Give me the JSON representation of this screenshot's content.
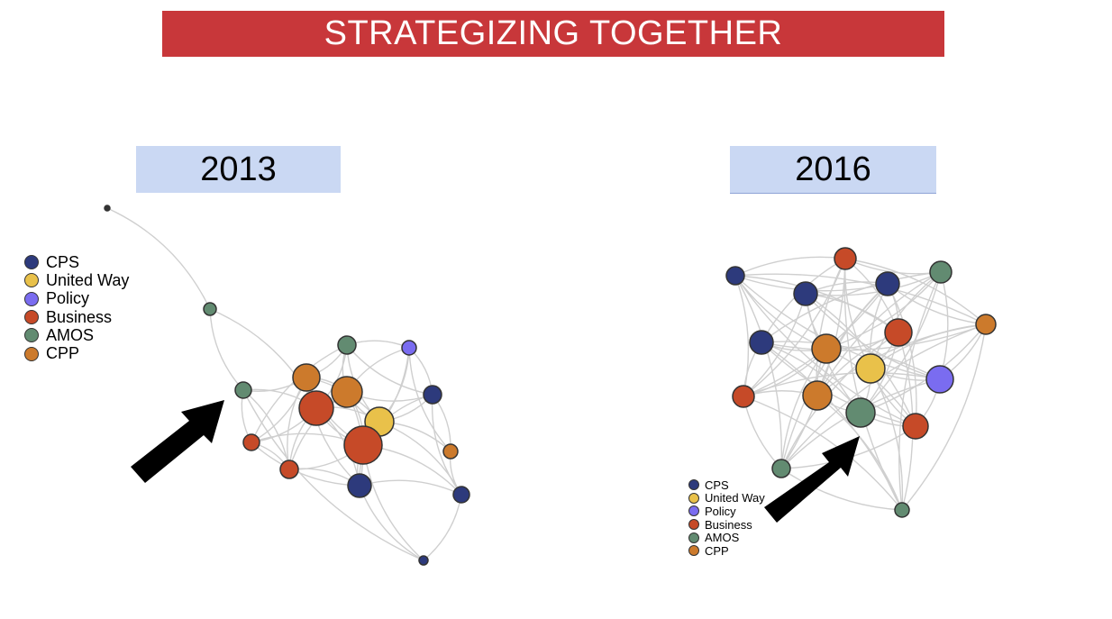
{
  "title": "STRATEGIZING TOGETHER",
  "legend": [
    {
      "label": "CPS",
      "color": "#2d3a7c"
    },
    {
      "label": "United Way",
      "color": "#e9c14a"
    },
    {
      "label": "Policy",
      "color": "#7a6cf0"
    },
    {
      "label": "Business",
      "color": "#c64a28"
    },
    {
      "label": "AMOS",
      "color": "#628b71"
    },
    {
      "label": "CPP",
      "color": "#cc7a2c"
    }
  ],
  "networks": [
    {
      "year": "2013"
    },
    {
      "year": "2016"
    }
  ]
}
